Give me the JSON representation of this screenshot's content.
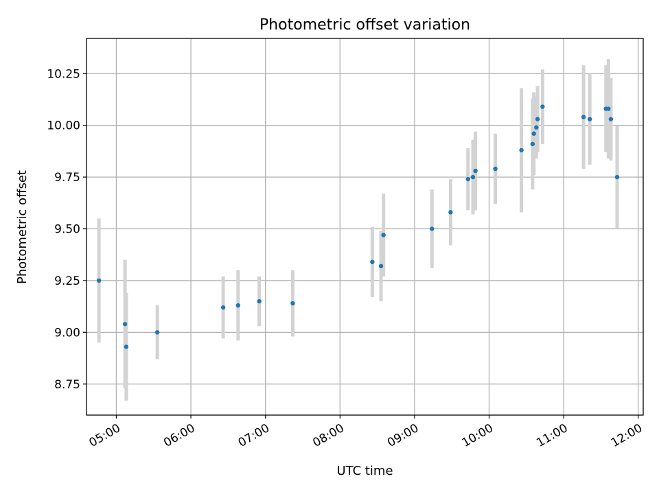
{
  "chart_data": {
    "type": "scatter",
    "title": "Photometric offset variation",
    "xlabel": "UTC time",
    "ylabel": "Photometric offset",
    "x_unit": "UTC time (HH:MM)",
    "xlim": [
      "04:36",
      "12:04"
    ],
    "ylim": [
      8.6,
      10.42
    ],
    "xticks": [
      "05:00",
      "06:00",
      "07:00",
      "08:00",
      "09:00",
      "10:00",
      "11:00",
      "12:00"
    ],
    "yticks": [
      "8.75",
      "9.00",
      "9.25",
      "9.50",
      "9.75",
      "10.00",
      "10.25"
    ],
    "grid": true,
    "point_color": "#1f77b4",
    "errorbar_color": "#d3d3d3",
    "points": [
      {
        "x": "04:46",
        "y": 9.25,
        "yerr": 0.3
      },
      {
        "x": "05:07",
        "y": 9.04,
        "yerr": 0.31
      },
      {
        "x": "05:08",
        "y": 8.93,
        "yerr": 0.26
      },
      {
        "x": "05:33",
        "y": 9.0,
        "yerr": 0.13
      },
      {
        "x": "06:26",
        "y": 9.12,
        "yerr": 0.15
      },
      {
        "x": "06:38",
        "y": 9.13,
        "yerr": 0.17
      },
      {
        "x": "06:55",
        "y": 9.15,
        "yerr": 0.12
      },
      {
        "x": "07:22",
        "y": 9.14,
        "yerr": 0.16
      },
      {
        "x": "08:26",
        "y": 9.34,
        "yerr": 0.17
      },
      {
        "x": "08:33",
        "y": 9.32,
        "yerr": 0.17
      },
      {
        "x": "08:35",
        "y": 9.47,
        "yerr": 0.2
      },
      {
        "x": "09:14",
        "y": 9.5,
        "yerr": 0.19
      },
      {
        "x": "09:29",
        "y": 9.58,
        "yerr": 0.16
      },
      {
        "x": "09:43",
        "y": 9.74,
        "yerr": 0.15
      },
      {
        "x": "09:47",
        "y": 9.75,
        "yerr": 0.18
      },
      {
        "x": "09:49",
        "y": 9.78,
        "yerr": 0.19
      },
      {
        "x": "10:05",
        "y": 9.79,
        "yerr": 0.17
      },
      {
        "x": "10:26",
        "y": 9.88,
        "yerr": 0.3
      },
      {
        "x": "10:35",
        "y": 9.91,
        "yerr": 0.22
      },
      {
        "x": "10:36",
        "y": 9.96,
        "yerr": 0.2
      },
      {
        "x": "10:38",
        "y": 9.99,
        "yerr": 0.15
      },
      {
        "x": "10:39",
        "y": 10.03,
        "yerr": 0.16
      },
      {
        "x": "10:43",
        "y": 10.09,
        "yerr": 0.18
      },
      {
        "x": "11:16",
        "y": 10.04,
        "yerr": 0.25
      },
      {
        "x": "11:21",
        "y": 10.03,
        "yerr": 0.22
      },
      {
        "x": "11:34",
        "y": 10.08,
        "yerr": 0.21
      },
      {
        "x": "11:36",
        "y": 10.08,
        "yerr": 0.24
      },
      {
        "x": "11:38",
        "y": 10.03,
        "yerr": 0.2
      },
      {
        "x": "11:43",
        "y": 9.75,
        "yerr": 0.25
      }
    ]
  }
}
